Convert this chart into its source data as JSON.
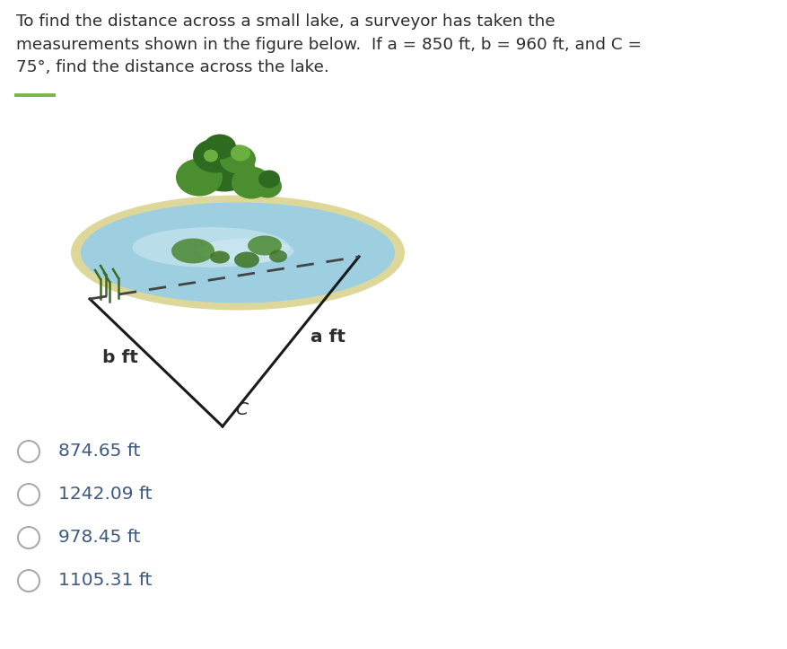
{
  "title_text": "To find the distance across a small lake, a surveyor has taken the\nmeasurements shown in the figure below.  If a = 850 ft, b = 960 ft, and C =\n75°, find the distance across the lake.",
  "title_fontsize": 13.2,
  "title_color": "#2d2d2d",
  "bg_color": "#ffffff",
  "separator_color": "#7ab648",
  "triangle_color": "#1a1a1a",
  "dashed_color": "#444444",
  "label_b": "b ft",
  "label_a": "a ft",
  "label_c": "C",
  "choices": [
    "874.65 ft",
    "1242.09 ft",
    "978.45 ft",
    "1105.31 ft"
  ],
  "choice_fontsize": 14.5,
  "choice_color": "#3d5a80",
  "radio_color": "#aaaaaa",
  "lake_blue": "#9dcfe0",
  "lake_blue2": "#b8dde8",
  "lake_shore": "#ddd89a",
  "lake_light": "#cce8f0",
  "grass_dark": "#2e6b20",
  "grass_mid": "#4a8e30",
  "grass_light": "#6ab040",
  "grass_highlight": "#88cc55",
  "reed_color": "#3a6e20",
  "water_plant1": "#4a8830",
  "water_plant2": "#3a7020"
}
